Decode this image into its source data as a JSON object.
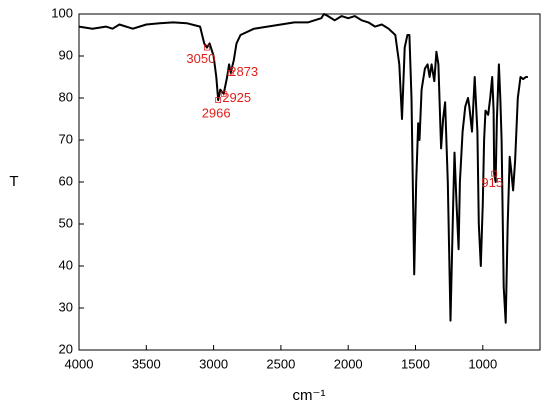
{
  "chart_data": {
    "type": "line",
    "x_label": "cm⁻¹",
    "y_label": "T",
    "xlim": [
      4000,
      575
    ],
    "ylim": [
      20,
      100
    ],
    "xticks": [
      4000,
      3500,
      3000,
      2500,
      2000,
      1500,
      1000
    ],
    "yticks": [
      20,
      30,
      40,
      50,
      60,
      70,
      80,
      90,
      100
    ],
    "series": [
      {
        "color": "#000000",
        "x": [
          4000,
          3900,
          3800,
          3750,
          3700,
          3600,
          3500,
          3400,
          3300,
          3200,
          3100,
          3070,
          3050,
          3030,
          3000,
          2980,
          2966,
          2950,
          2925,
          2900,
          2885,
          2873,
          2850,
          2830,
          2800,
          2700,
          2600,
          2500,
          2400,
          2300,
          2200,
          2180,
          2150,
          2100,
          2050,
          2000,
          1950,
          1900,
          1850,
          1800,
          1750,
          1700,
          1650,
          1620,
          1600,
          1580,
          1560,
          1545,
          1530,
          1510,
          1495,
          1480,
          1470,
          1455,
          1430,
          1410,
          1395,
          1380,
          1360,
          1345,
          1330,
          1310,
          1295,
          1280,
          1260,
          1240,
          1220,
          1210,
          1195,
          1180,
          1170,
          1150,
          1130,
          1110,
          1100,
          1080,
          1060,
          1040,
          1030,
          1015,
          1000,
          990,
          980,
          960,
          945,
          930,
          920,
          915,
          905,
          895,
          880,
          870,
          860,
          845,
          830,
          815,
          800,
          790,
          775,
          760,
          740,
          720,
          700,
          680,
          665
        ],
        "values": [
          97,
          96.5,
          97,
          96.5,
          97.5,
          96.5,
          97.5,
          97.8,
          98,
          97.8,
          97,
          93,
          92,
          93,
          90,
          85,
          79.5,
          82,
          81,
          85,
          88,
          86,
          89,
          93,
          95,
          96.5,
          97,
          97.5,
          98,
          98,
          99,
          100,
          99.5,
          98.5,
          99.5,
          99,
          99.5,
          98.5,
          98,
          97,
          97.5,
          96.5,
          95,
          88,
          75,
          92,
          95,
          95,
          80,
          38,
          60,
          74,
          70,
          82,
          87,
          88,
          85,
          88,
          84,
          91,
          88,
          68,
          75,
          79,
          60,
          27,
          55,
          67,
          55,
          44,
          60,
          72,
          78,
          80,
          78,
          72,
          85,
          72,
          50,
          40,
          55,
          70,
          77,
          76,
          80,
          85,
          77,
          62,
          60,
          75,
          88,
          80,
          70,
          35,
          26.5,
          50,
          66,
          63,
          58,
          65,
          80,
          85,
          84.5,
          85,
          85
        ]
      }
    ],
    "annotations": [
      {
        "text": "3050",
        "x": 3050,
        "y": 92
      },
      {
        "text": "2966",
        "x": 2966,
        "y": 79.5
      },
      {
        "text": "2925",
        "x": 2925,
        "y": 81
      },
      {
        "text": "2873",
        "x": 2873,
        "y": 86
      },
      {
        "text": "915",
        "x": 915,
        "y": 62
      }
    ]
  }
}
